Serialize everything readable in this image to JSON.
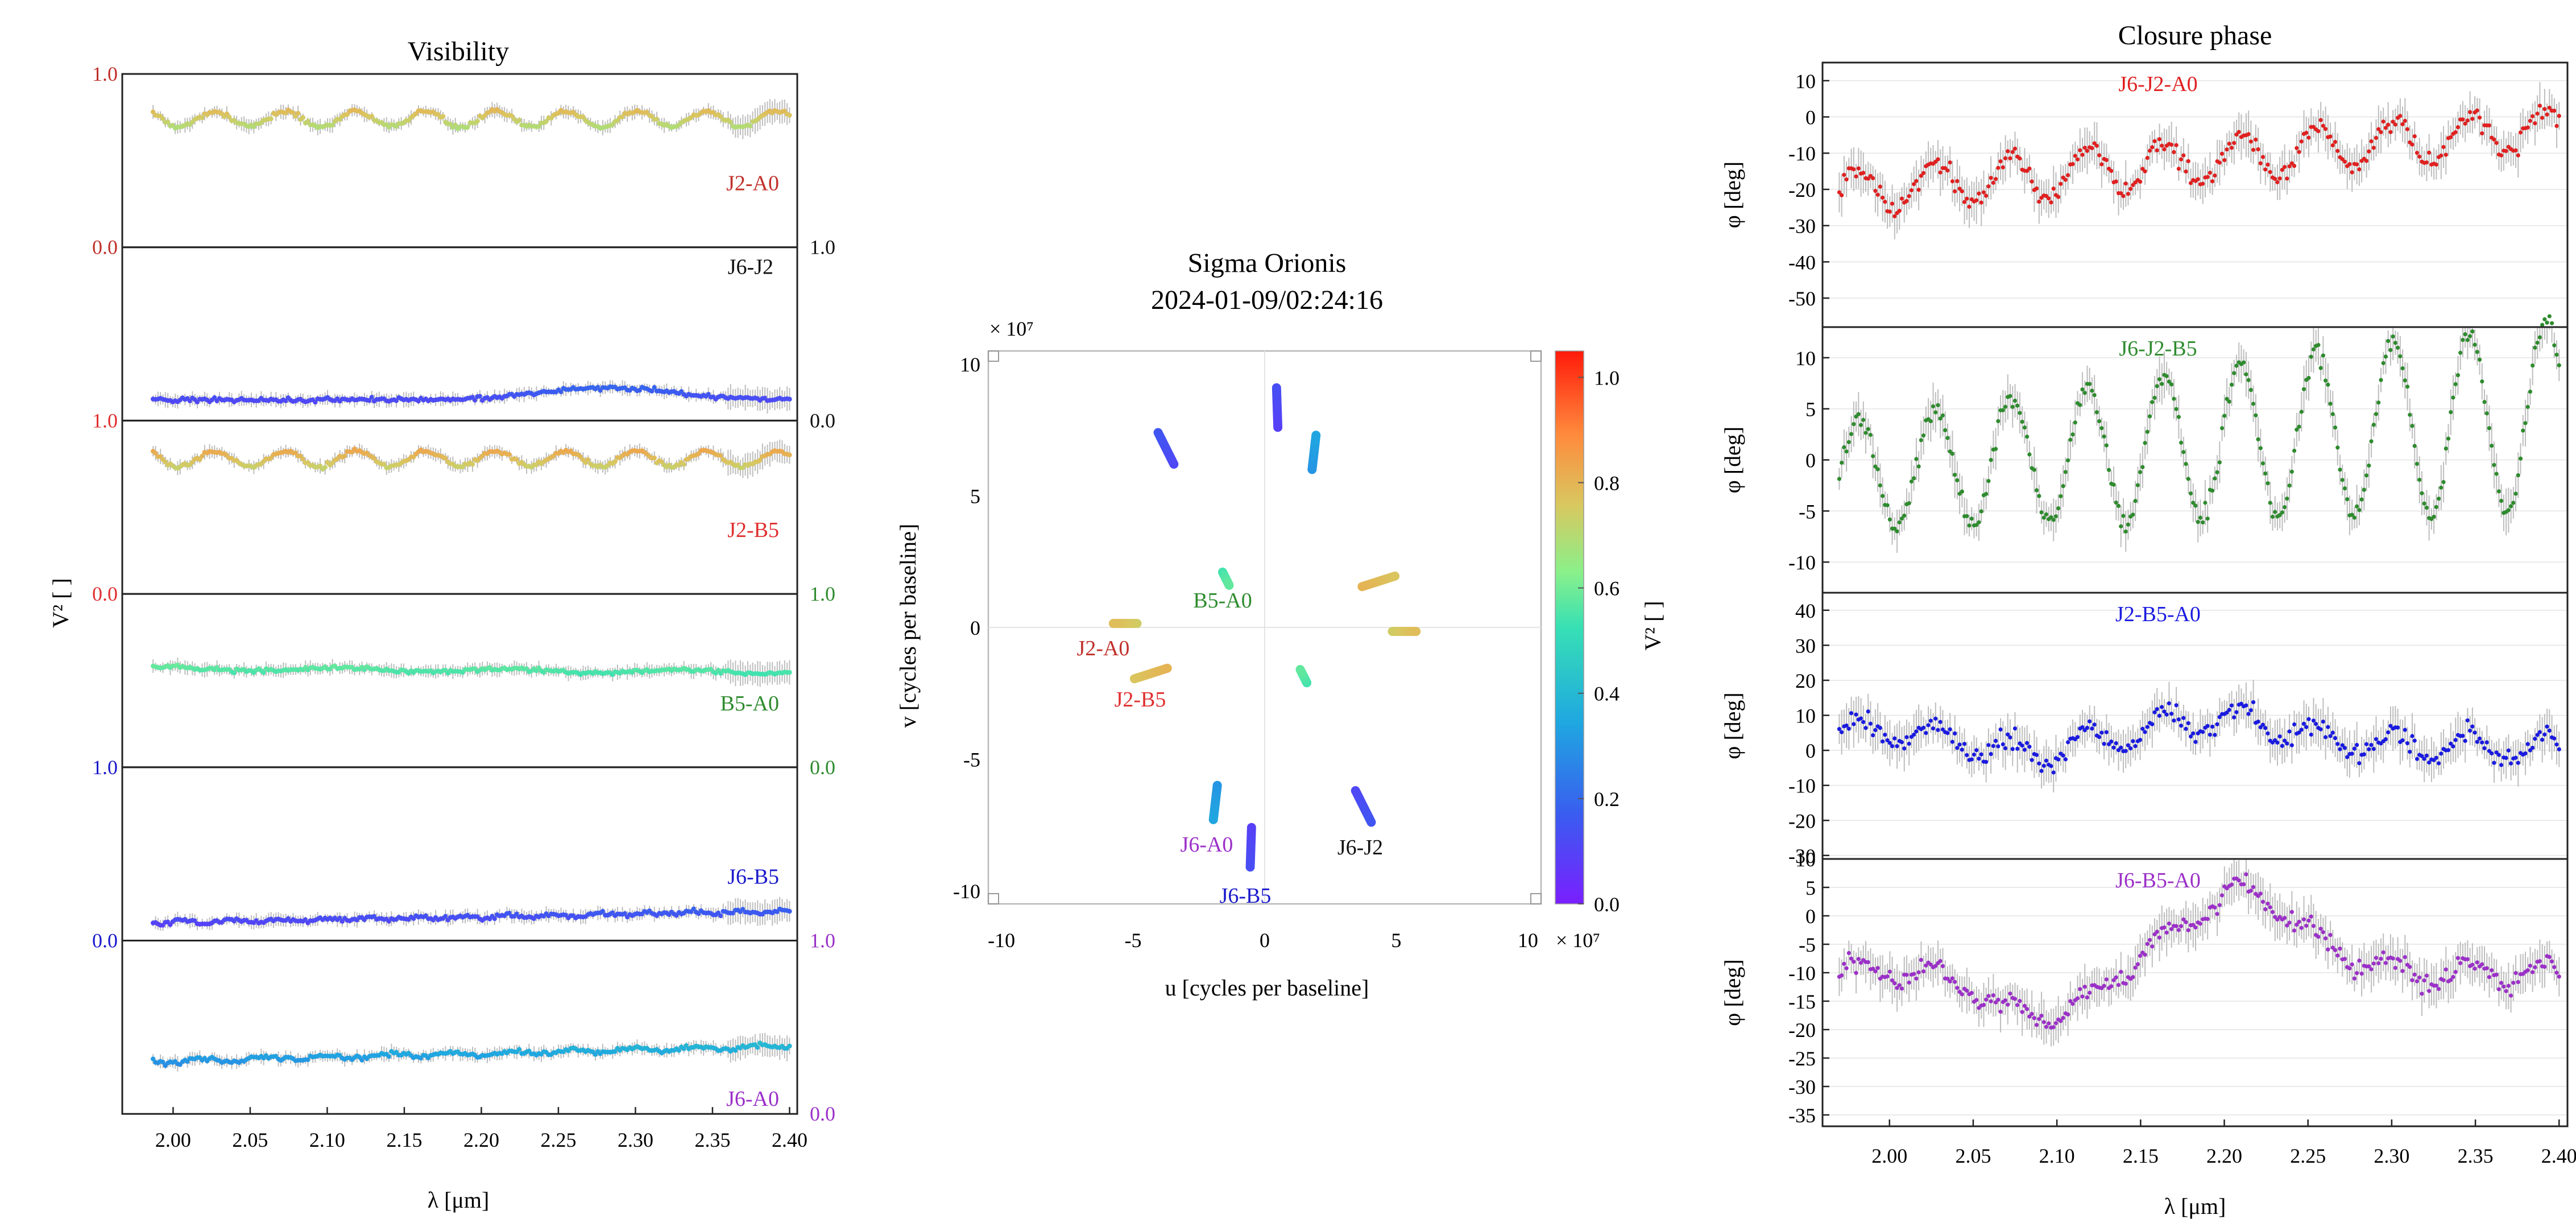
{
  "colors": {
    "frame": "#222222",
    "grid": "#e4e4e4",
    "errorbar": "#bdbdbd",
    "J2-A0": "#c0302a",
    "J6-J2": "#111111",
    "J2-B5": "#e03030",
    "B5-A0": "#2e8b2e",
    "J6-B5": "#1a1acc",
    "J6-A0": "#9b30c8",
    "J6-J2-A0": "#e02020",
    "J6-J2-B5": "#2e8b2e",
    "J2-B5-A0": "#1a1ae0",
    "J6-B5-A0": "#9b30c8"
  },
  "chart_data": [
    {
      "type": "scatter",
      "title": "Visibility",
      "ylabel": "V² [ ]",
      "xlabel": "λ [μm]",
      "xlim": [
        1.967,
        2.405
      ],
      "xticks": [
        "2.00",
        "2.05",
        "2.10",
        "2.15",
        "2.20",
        "2.25",
        "2.30",
        "2.35",
        "2.40"
      ],
      "panel_ylim": [
        0,
        1
      ],
      "axis_tick_labels": {
        "left": [
          {
            "text": "1.0",
            "color": "#c0302a"
          },
          {
            "text": "0.0",
            "color": "#c0302a"
          },
          {
            "text": "1.0",
            "color": "#e03030"
          },
          {
            "text": "0.0",
            "color": "#e03030"
          },
          {
            "text": "1.0",
            "color": "#1a1acc"
          },
          {
            "text": "0.0",
            "color": "#1a1acc"
          }
        ],
        "right": [
          {
            "text": "1.0",
            "color": "#111111"
          },
          {
            "text": "0.0",
            "color": "#111111"
          },
          {
            "text": "1.0",
            "color": "#2e8b2e"
          },
          {
            "text": "0.0",
            "color": "#2e8b2e"
          },
          {
            "text": "1.0",
            "color": "#9b30c8"
          },
          {
            "text": "0.0",
            "color": "#9b30c8"
          }
        ]
      },
      "series": [
        {
          "name": "J2-A0",
          "mean": 0.74,
          "amp": 0.045,
          "period": 0.0456,
          "trend": 0.0
        },
        {
          "name": "J6-J2",
          "mean": 0.12,
          "amp": 0.0,
          "period": 0.0,
          "trend": 0.0,
          "bump": {
            "center": 2.28,
            "height": 0.07,
            "width": 0.06
          }
        },
        {
          "name": "J2-B5",
          "mean": 0.78,
          "amp": 0.045,
          "period": 0.0456,
          "trend": 0.0
        },
        {
          "name": "B5-A0",
          "mean": 0.57,
          "amp": 0.01,
          "period": 0.11,
          "trend": -0.02
        },
        {
          "name": "J6-B5",
          "mean": 0.1,
          "amp": 0.008,
          "period": 0.03,
          "trend": 0.07
        },
        {
          "name": "J6-A0",
          "mean": 0.3,
          "amp": 0.012,
          "period": 0.04,
          "trend": 0.09
        }
      ]
    },
    {
      "type": "scatter",
      "title": "Sigma Orionis",
      "subtitle": "2024-01-09/02:24:16",
      "xlabel": "u [cycles per baseline]",
      "ylabel": "v [cycles per baseline]",
      "scale_note": "× 10⁷",
      "xlim": [
        -10.5,
        10.5
      ],
      "ylim": [
        -10.5,
        10.5
      ],
      "xticks": [
        "-10",
        "-5",
        "0",
        "5",
        "10"
      ],
      "yticks": [
        "10",
        "5",
        "0",
        "-5",
        "-10"
      ],
      "colorbar": {
        "label": "V² [ ]",
        "range": [
          0,
          1.05
        ],
        "ticks": [
          "1.0",
          "0.8",
          "0.6",
          "0.4",
          "0.2",
          "0.0"
        ]
      },
      "segments": [
        {
          "x1": -4.85,
          "y1": 0.15,
          "x2": -5.75,
          "y2": 0.15,
          "v2": 0.76
        },
        {
          "x1": 4.85,
          "y1": -0.15,
          "x2": 5.75,
          "y2": -0.15,
          "v2": 0.76
        },
        {
          "x1": -4.95,
          "y1": -1.95,
          "x2": -3.7,
          "y2": -1.55,
          "v2": 0.78
        },
        {
          "x1": 4.95,
          "y1": 1.95,
          "x2": 3.7,
          "y2": 1.55,
          "v2": 0.78
        },
        {
          "x1": -1.6,
          "y1": 2.1,
          "x2": -1.35,
          "y2": 1.6,
          "v2": 0.56
        },
        {
          "x1": 1.6,
          "y1": -2.1,
          "x2": 1.35,
          "y2": -1.6,
          "v2": 0.56
        },
        {
          "x1": 3.45,
          "y1": -6.2,
          "x2": 4.05,
          "y2": -7.4,
          "v2": 0.13
        },
        {
          "x1": -3.45,
          "y1": 6.2,
          "x2": -4.05,
          "y2": 7.4,
          "v2": 0.13
        },
        {
          "x1": -0.5,
          "y1": -7.6,
          "x2": -0.55,
          "y2": -9.1,
          "v2": 0.11
        },
        {
          "x1": 0.5,
          "y1": 7.6,
          "x2": 0.45,
          "y2": 9.1,
          "v2": 0.11
        },
        {
          "x1": -1.8,
          "y1": -6.0,
          "x2": -1.95,
          "y2": -7.3,
          "v2": 0.32
        },
        {
          "x1": 1.8,
          "y1": 6.0,
          "x2": 1.95,
          "y2": 7.3,
          "v2": 0.32
        }
      ],
      "baseline_labels": [
        "J2-A0",
        "J2-B5",
        "B5-A0",
        "J6-A0",
        "J6-B5",
        "J6-J2"
      ]
    },
    {
      "type": "scatter",
      "title": "Closure phase",
      "xlabel": "λ [μm]",
      "ylabel": "φ [deg]",
      "xlim": [
        1.96,
        2.405
      ],
      "xticks": [
        "2.00",
        "2.05",
        "2.10",
        "2.15",
        "2.20",
        "2.25",
        "2.30",
        "2.35",
        "2.40"
      ],
      "series": [
        {
          "name": "J6-J2-A0",
          "ylim": [
            -58,
            15
          ],
          "yticks": [
            "10",
            "0",
            "-10",
            "-20",
            "-30",
            "-40",
            "-50"
          ],
          "yvals": [
            10,
            0,
            -10,
            -20,
            -30,
            -40,
            -50
          ],
          "mean": -12,
          "amp": 6,
          "period": 0.0456,
          "trend": 18
        },
        {
          "name": "J6-J2-B5",
          "ylim": [
            -13,
            13
          ],
          "yticks": [
            "10",
            "5",
            "0",
            "-5",
            "-10"
          ],
          "yvals": [
            10,
            5,
            0,
            -5,
            -10
          ],
          "mean": 1.5,
          "amp": 5,
          "period": 0.0456,
          "trend": 6
        },
        {
          "name": "J2-B5-A0",
          "ylim": [
            -31,
            45
          ],
          "yticks": [
            "40",
            "30",
            "20",
            "10",
            "0",
            "-10",
            "-20",
            "-30"
          ],
          "yvals": [
            40,
            30,
            20,
            10,
            0,
            -10,
            -20,
            -30
          ],
          "mean": 3,
          "amp": 4,
          "period": 0.0456,
          "trend": -6
        },
        {
          "name": "J6-B5-A0",
          "ylim": [
            -37,
            10
          ],
          "yticks": [
            "10",
            "5",
            "0",
            "-5",
            "-10",
            "-15",
            "-20",
            "-25",
            "-30",
            "-35"
          ],
          "yvals": [
            10,
            5,
            0,
            -5,
            -10,
            -15,
            -20,
            -25,
            -30,
            -35
          ],
          "mean": -10,
          "amp": 2,
          "period": 0.0456,
          "trend": 0
        }
      ]
    }
  ]
}
